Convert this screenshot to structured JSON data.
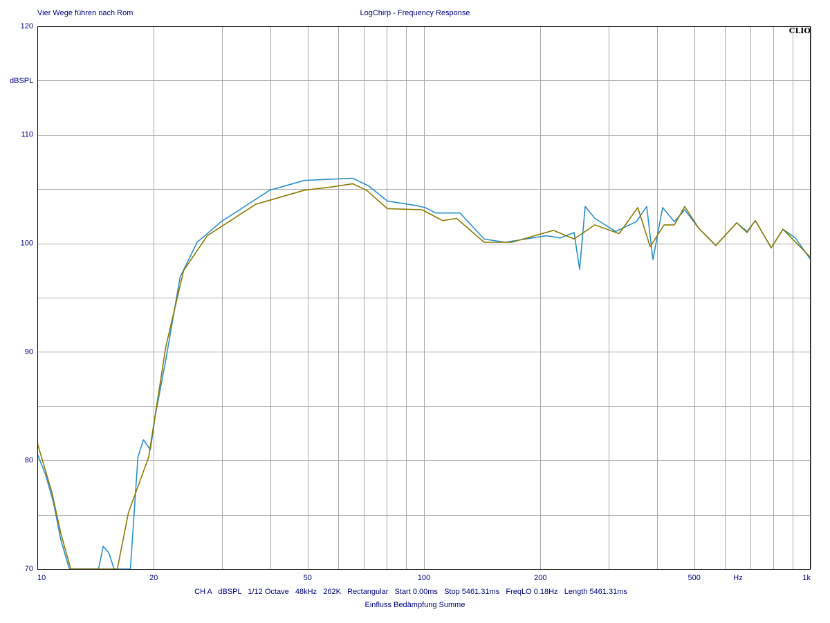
{
  "chart_data": {
    "type": "line",
    "subtitle": "Vier Wege führen nach Rom",
    "title": "LogChirp - Frequency Response",
    "brand": "CLIO",
    "y_label": "dBSPL",
    "x_label": "Hz",
    "footer": "CH A   dBSPL   1/12 Octave   48kHz   262K   Rectangular   Start 0.00ms   Stop 5461.31ms   FreqLO 0.18Hz   Length 5461.31ms",
    "caption": "Einfluss Bedämpfung Summe",
    "log_x": true,
    "grid": true,
    "xlim": [
      10,
      1000
    ],
    "ylim": [
      70,
      120
    ],
    "xticks": [
      10,
      20,
      50,
      100,
      200,
      500,
      {
        "value": 1000,
        "label": "1k"
      }
    ],
    "yticks": [
      70,
      80,
      90,
      100,
      110,
      120
    ],
    "series": [
      {
        "color": "#2a8fc9",
        "x": [
          10,
          10.5,
          11.0,
          11.5,
          12.1,
          14.4,
          14.8,
          15.3,
          15.8,
          17.4,
          18.2,
          18.8,
          19.6,
          20.2,
          21.5,
          23.4,
          25.9,
          29.9,
          39.9,
          49.0,
          65.4,
          71.9,
          80.4,
          94.8,
          100.8,
          107.2,
          123.9,
          143.1,
          161.9,
          207.4,
          225.2,
          244.5,
          252.6,
          261.1,
          276.6,
          313.1,
          354.3,
          376.7,
          391.0,
          414.2,
          444.2,
          472.5,
          513.2,
          568.6,
          643.7,
          684.6,
          719.4,
          790.7,
          848.2,
          913.2,
          1000
        ],
        "values": [
          80.6,
          78.7,
          76.2,
          72.7,
          70,
          70,
          72.1,
          71.5,
          70,
          70,
          80.3,
          81.9,
          81.0,
          84.2,
          89.3,
          96.9,
          100.1,
          102.0,
          104.9,
          105.8,
          106.0,
          105.3,
          103.9,
          103.5,
          103.3,
          102.8,
          102.8,
          100.4,
          100.1,
          100.7,
          100.5,
          101.0,
          97.6,
          103.4,
          102.3,
          101.1,
          102.0,
          103.4,
          98.5,
          103.3,
          102.0,
          103.1,
          101.4,
          99.8,
          101.9,
          101.1,
          102.1,
          99.6,
          101.3,
          100.5,
          98.5
        ]
      },
      {
        "color": "#8c7a00",
        "x": [
          10,
          10.9,
          11.5,
          12.2,
          16.1,
          17.2,
          19.4,
          21.5,
          23.9,
          27.5,
          36.7,
          49.0,
          57.8,
          65.4,
          71.0,
          80.4,
          98.8,
          111.8,
          121.4,
          143.1,
          168.8,
          216.1,
          244.5,
          276.6,
          319.6,
          357.3,
          384.6,
          417.6,
          444.2,
          472.5,
          513.2,
          568.6,
          643.7,
          684.6,
          719.4,
          790.7,
          848.2,
          1000
        ],
        "values": [
          81.6,
          77.1,
          73.3,
          70,
          70,
          75.2,
          80.3,
          90.5,
          97.5,
          100.7,
          103.6,
          104.9,
          105.2,
          105.5,
          104.9,
          103.2,
          103.1,
          102.1,
          102.3,
          100.1,
          100.1,
          101.2,
          100.4,
          101.7,
          100.9,
          103.3,
          99.7,
          101.7,
          101.7,
          103.4,
          101.4,
          99.8,
          101.9,
          101.0,
          102.1,
          99.6,
          101.3,
          98.7
        ]
      }
    ]
  }
}
